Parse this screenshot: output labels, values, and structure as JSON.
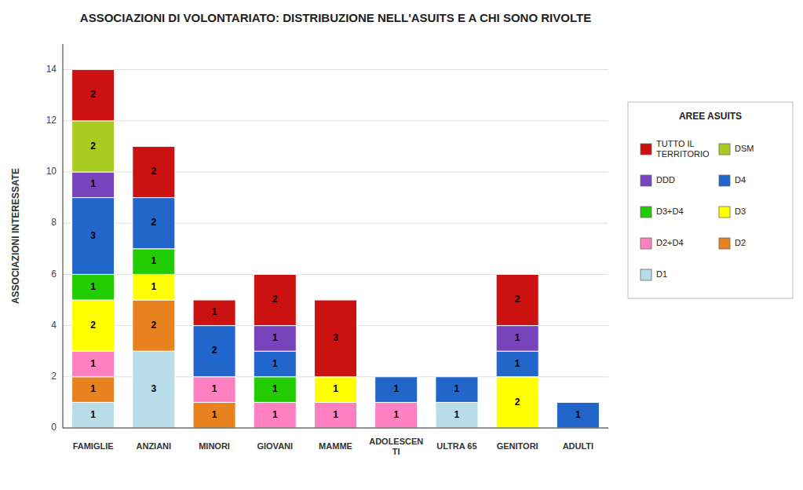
{
  "chart_data": {
    "type": "bar",
    "stacked": true,
    "title": "ASSOCIAZIONI DI VOLONTARIATO: DISTRIBUZIONE NELL'ASUITS E A CHI SONO RIVOLTE",
    "y_label": "ASSOCIAZIONI INTERESSATE",
    "legend_title": "AREE ASUITS",
    "categories": [
      "FAMIGLIE",
      "ANZIANI",
      "MINORI",
      "GIOVANI",
      "MAMME",
      "ADOLESCEN\nTI",
      "ULTRA 65",
      "GENITORI",
      "ADULTI"
    ],
    "series": [
      {
        "name": "D1",
        "color": "#b8dde8",
        "values": [
          1,
          3,
          0,
          0,
          0,
          0,
          1,
          0,
          0
        ]
      },
      {
        "name": "D2",
        "color": "#e8821e",
        "values": [
          1,
          2,
          1,
          0,
          0,
          0,
          0,
          0,
          0
        ]
      },
      {
        "name": "D2+D4",
        "color": "#ff80c0",
        "values": [
          1,
          0,
          1,
          1,
          1,
          1,
          0,
          0,
          0
        ]
      },
      {
        "name": "D3",
        "color": "#ffff00",
        "values": [
          2,
          1,
          0,
          0,
          1,
          0,
          0,
          2,
          0
        ]
      },
      {
        "name": "D3+D4",
        "color": "#22cc00",
        "values": [
          1,
          1,
          0,
          1,
          0,
          0,
          0,
          0,
          0
        ]
      },
      {
        "name": "D4",
        "color": "#2266cc",
        "values": [
          3,
          2,
          2,
          1,
          0,
          1,
          1,
          1,
          1
        ]
      },
      {
        "name": "DDD",
        "color": "#7744bb",
        "values": [
          1,
          0,
          0,
          1,
          0,
          0,
          0,
          1,
          0
        ]
      },
      {
        "name": "DSM",
        "color": "#aacc22",
        "values": [
          2,
          0,
          0,
          0,
          0,
          0,
          0,
          0,
          0
        ]
      },
      {
        "name": "TUTTO IL\nTERRITORIO",
        "color": "#cc1111",
        "values": [
          2,
          2,
          1,
          2,
          3,
          0,
          0,
          2,
          0
        ]
      }
    ],
    "ylim": [
      0,
      15
    ],
    "yticks": [
      0,
      2,
      4,
      6,
      8,
      10,
      12,
      14
    ],
    "grid": true,
    "data_labels": true
  }
}
